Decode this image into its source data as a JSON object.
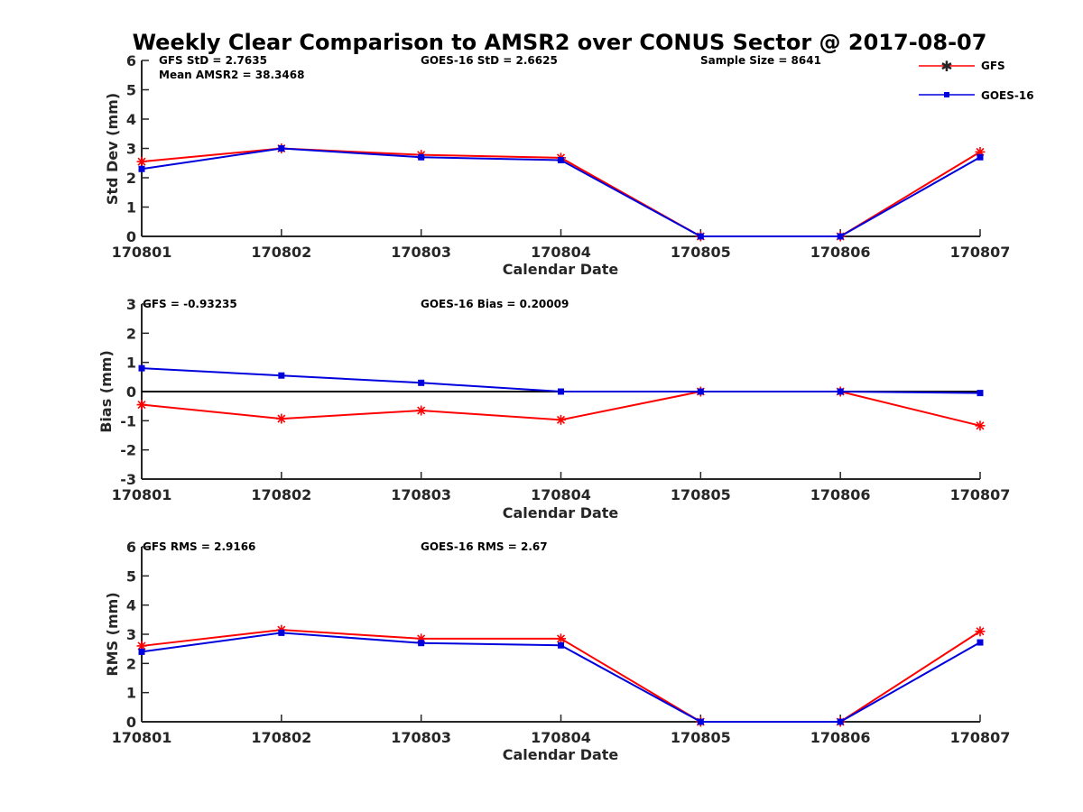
{
  "colors": {
    "gfs": "#ff0000",
    "goes16": "#0000dd",
    "zero_line": "#000000",
    "axis": "#262626"
  },
  "chart_data": [
    {
      "type": "line",
      "title": "Weekly Clear Comparison to AMSR2 over CONUS Sector @ 2017-08-07",
      "xlabel": "Calendar Date",
      "ylabel": "Std Dev (mm)",
      "categories": [
        "170801",
        "170802",
        "170803",
        "170804",
        "170805",
        "170806",
        "170807"
      ],
      "ylim": [
        0,
        6
      ],
      "yticks": [
        "0",
        "1",
        "2",
        "3",
        "4",
        "5",
        "6"
      ],
      "grid": false,
      "series": [
        {
          "name": "GFS",
          "color": "#ff0000",
          "marker": "asterisk",
          "values": [
            2.55,
            3.0,
            2.78,
            2.68,
            0,
            0,
            2.88
          ]
        },
        {
          "name": "GOES-16",
          "color": "#0000dd",
          "marker": "square",
          "values": [
            2.3,
            3.0,
            2.7,
            2.6,
            0,
            0,
            2.7
          ]
        }
      ],
      "annotations": [
        "GFS StD = 2.7635",
        "Mean AMSR2 = 38.3468",
        "GOES-16 StD = 2.6625",
        "Sample Size = 8641"
      ],
      "legend": {
        "position": "top-right",
        "entries": [
          "GFS",
          "GOES-16"
        ]
      }
    },
    {
      "type": "line",
      "title": "",
      "xlabel": "Calendar Date",
      "ylabel": "Bias (mm)",
      "categories": [
        "170801",
        "170802",
        "170803",
        "170804",
        "170805",
        "170806",
        "170807"
      ],
      "ylim": [
        -3,
        3
      ],
      "yticks": [
        "-3",
        "-2",
        "-1",
        "0",
        "1",
        "2",
        "3"
      ],
      "grid": false,
      "zero_line": true,
      "series": [
        {
          "name": "GFS",
          "color": "#ff0000",
          "marker": "asterisk",
          "values": [
            -0.45,
            -0.93,
            -0.65,
            -0.97,
            0,
            0,
            -1.17
          ]
        },
        {
          "name": "GOES-16",
          "color": "#0000dd",
          "marker": "square",
          "values": [
            0.8,
            0.55,
            0.3,
            0,
            0,
            0,
            -0.05
          ]
        }
      ],
      "annotations": [
        "GFS = -0.93235",
        "GOES-16 Bias  = 0.20009"
      ]
    },
    {
      "type": "line",
      "title": "",
      "xlabel": "Calendar Date",
      "ylabel": "RMS (mm)",
      "categories": [
        "170801",
        "170802",
        "170803",
        "170804",
        "170805",
        "170806",
        "170807"
      ],
      "ylim": [
        0,
        6
      ],
      "yticks": [
        "0",
        "1",
        "2",
        "3",
        "4",
        "5",
        "6"
      ],
      "grid": false,
      "series": [
        {
          "name": "GFS",
          "color": "#ff0000",
          "marker": "asterisk",
          "values": [
            2.6,
            3.15,
            2.85,
            2.85,
            0,
            0,
            3.1
          ]
        },
        {
          "name": "GOES-16",
          "color": "#0000dd",
          "marker": "square",
          "values": [
            2.4,
            3.05,
            2.7,
            2.62,
            0,
            0,
            2.72
          ]
        }
      ],
      "annotations": [
        "GFS RMS = 2.9166",
        "GOES-16 RMS = 2.67"
      ]
    }
  ]
}
